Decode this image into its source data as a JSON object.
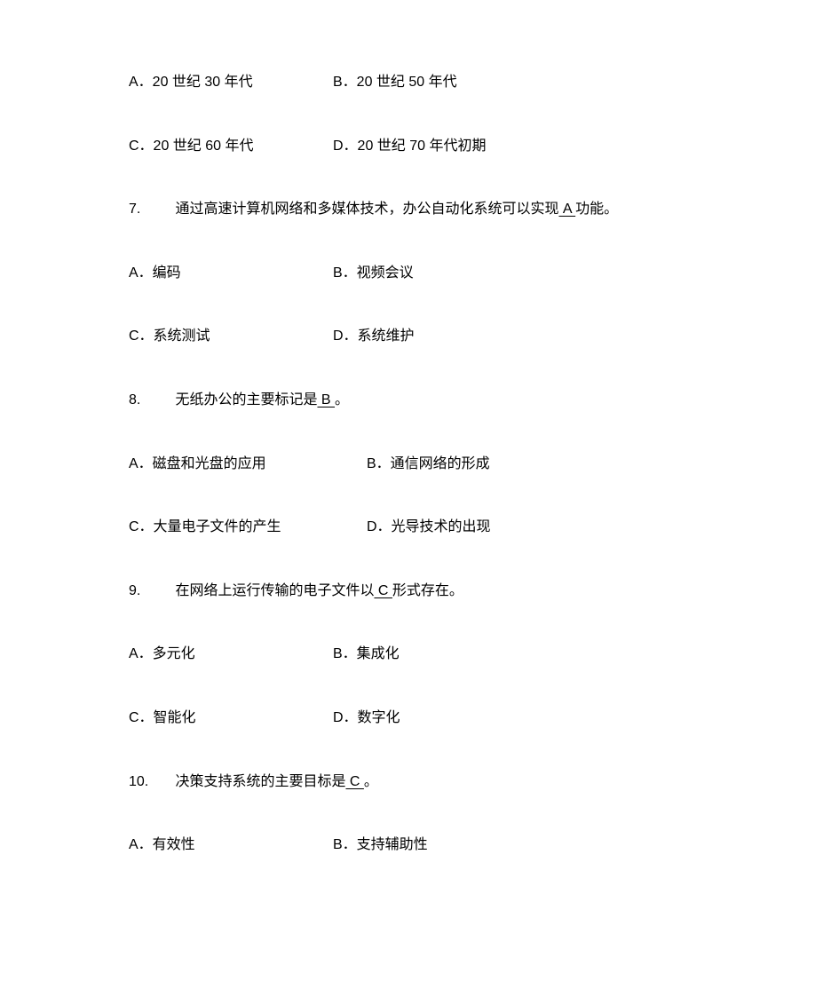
{
  "q6_options": {
    "a": "A．20 世纪 30 年代",
    "b": "B．20 世纪 50 年代",
    "c": "C．20 世纪 60 年代",
    "d": "D．20 世纪 70 年代初期"
  },
  "q7": {
    "num": "7.",
    "text_before": "通过高速计算机网络和多媒体技术，办公自动化系统可以实现",
    "answer": "    A       ",
    "text_after": "功能。",
    "options": {
      "a": "A．编码",
      "b": "B．视频会议",
      "c": "C．系统测试",
      "d": "D．系统维护"
    }
  },
  "q8": {
    "num": "8.",
    "text_before": "无纸办公的主要标记是",
    "answer": "     B     ",
    "text_after": "。",
    "options": {
      "a": "A．磁盘和光盘的应用",
      "b": "B．通信网络的形成",
      "c": "C．大量电子文件的产生",
      "d": "D．光导技术的出现"
    }
  },
  "q9": {
    "num": "9.",
    "text_before": "在网络上运行传输的电子文件以",
    "answer": "    C       ",
    "text_after": "形式存在。",
    "options": {
      "a": "A．多元化",
      "b": "B．集成化",
      "c": "C．智能化",
      "d": "D．数字化"
    }
  },
  "q10": {
    "num": "10.",
    "text_before": "决策支持系统的主要目标是",
    "answer": "     C     ",
    "text_after": "。",
    "options": {
      "a": "A．有效性",
      "b": "B．支持辅助性"
    }
  }
}
